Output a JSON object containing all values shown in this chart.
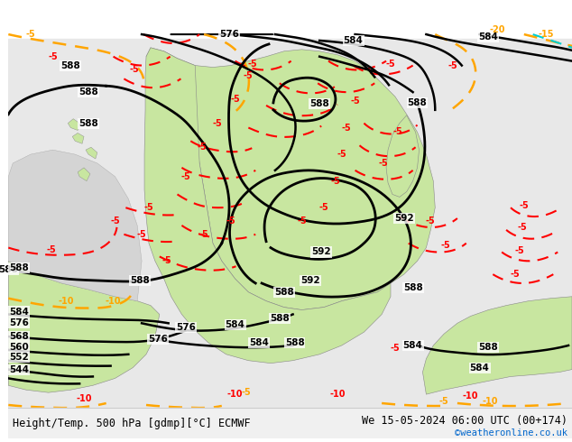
{
  "title_left": "Height/Temp. 500 hPa [gdmp][°C] ECMWF",
  "title_right": "We 15-05-2024 06:00 UTC (00+174)",
  "copyright": "©weatheronline.co.uk",
  "fig_width": 6.34,
  "fig_height": 4.9,
  "dpi": 100,
  "bg_color": "#ffffff",
  "map_bg_light": "#c8e6a0",
  "map_bg_gray": "#d4d4d4",
  "ocean_color": "#e8e8e8",
  "contour_color_height": "#000000",
  "contour_color_temp_neg": "#ff4500",
  "contour_color_temp_orange": "#ffa500",
  "contour_color_temp_teal": "#00ced1",
  "label_color_height": "#000000",
  "label_color_temp": "#ff4500",
  "bottom_bar_color": "#f0f0f0",
  "font_size_bottom": 9,
  "font_size_copyright": 8
}
